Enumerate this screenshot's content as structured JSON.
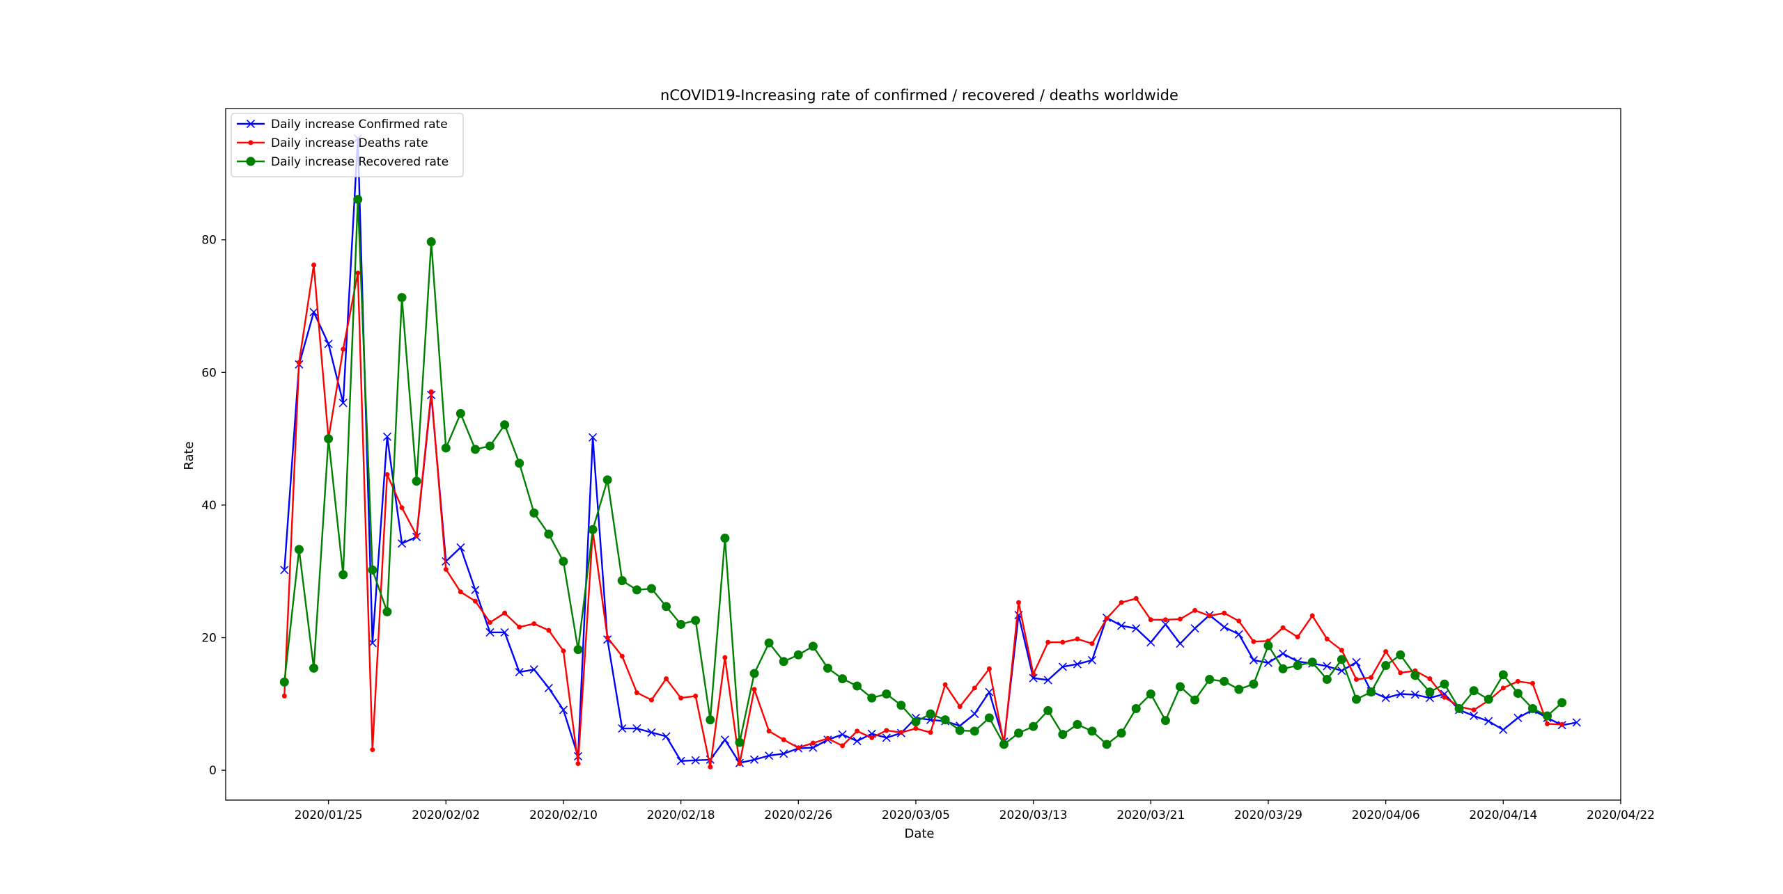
{
  "chart_data": {
    "type": "line",
    "title": "nCOVID19-Increasing rate of confirmed / recovered / deaths worldwide",
    "xlabel": "Date",
    "ylabel": "Rate",
    "x_start": "2020/01/22",
    "xlim": [
      "2020/01/18",
      "2020/04/22"
    ],
    "ylim": [
      -4.5,
      99.8
    ],
    "x_ticks": [
      "2020/01/25",
      "2020/02/02",
      "2020/02/10",
      "2020/02/18",
      "2020/02/26",
      "2020/03/05",
      "2020/03/13",
      "2020/03/21",
      "2020/03/29",
      "2020/04/06",
      "2020/04/14",
      "2020/04/22"
    ],
    "y_ticks": [
      0,
      20,
      40,
      60,
      80
    ],
    "grid": false,
    "legend_position": "upper left",
    "series": [
      {
        "name": "Daily increase Confirmed rate",
        "color": "#0000ff",
        "marker": "x",
        "values": [
          30.2,
          61.2,
          69.1,
          64.3,
          55.4,
          95.3,
          19.2,
          50.3,
          34.2,
          35.2,
          56.6,
          31.5,
          33.6,
          27.2,
          20.8,
          20.8,
          14.8,
          15.2,
          12.4,
          9.1,
          2.1,
          50.2,
          19.7,
          6.3,
          6.3,
          5.7,
          5.1,
          1.4,
          1.5,
          1.6,
          4.6,
          1.1,
          1.6,
          2.2,
          2.5,
          3.3,
          3.4,
          4.6,
          5.4,
          4.4,
          5.5,
          4.9,
          5.6,
          7.9,
          7.6,
          7.4,
          6.7,
          8.5,
          11.8,
          4.3,
          23.4,
          13.9,
          13.6,
          15.6,
          16.0,
          16.6,
          23.0,
          21.8,
          21.4,
          19.3,
          22.0,
          19.1,
          21.4,
          23.4,
          21.6,
          20.5,
          16.6,
          16.2,
          17.6,
          16.4,
          16.1,
          15.7,
          15.0,
          16.3,
          11.9,
          10.9,
          11.5,
          11.4,
          10.9,
          11.5,
          9.1,
          8.2,
          7.4,
          6.1,
          7.9,
          9.1,
          7.9,
          6.8,
          7.2
        ]
      },
      {
        "name": "Daily increase Deaths rate",
        "color": "#ff0000",
        "marker": ".",
        "values": [
          11.2,
          61.5,
          76.2,
          50.0,
          63.5,
          75.0,
          3.1,
          44.6,
          39.6,
          35.4,
          57.1,
          30.3,
          26.9,
          25.5,
          22.3,
          23.7,
          21.6,
          22.1,
          21.1,
          18.0,
          1.0,
          36.1,
          20.0,
          17.2,
          11.7,
          10.6,
          13.8,
          10.9,
          11.2,
          0.5,
          17.0,
          1.0,
          12.2,
          5.9,
          4.6,
          3.4,
          4.1,
          4.8,
          3.7,
          5.9,
          4.9,
          6.0,
          5.7,
          6.3,
          5.7,
          12.9,
          9.6,
          12.4,
          15.3,
          3.9,
          25.3,
          14.5,
          19.3,
          19.3,
          19.8,
          19.1,
          22.9,
          25.3,
          25.9,
          22.7,
          22.7,
          22.8,
          24.1,
          23.3,
          23.7,
          22.5,
          19.4,
          19.5,
          21.5,
          20.1,
          23.3,
          19.8,
          18.1,
          13.7,
          14.0,
          17.9,
          14.7,
          15.0,
          13.8,
          11.0,
          9.6,
          9.1,
          10.5,
          12.4,
          13.4,
          13.1,
          7.0,
          6.9
        ]
      },
      {
        "name": "Daily increase Recovered rate",
        "color": "#008000",
        "marker": "o",
        "values": [
          13.3,
          33.3,
          15.4,
          50.0,
          29.5,
          86.1,
          30.2,
          23.9,
          71.3,
          43.6,
          79.7,
          48.6,
          53.8,
          48.4,
          48.9,
          52.1,
          46.3,
          38.8,
          35.6,
          31.5,
          18.2,
          36.3,
          43.8,
          28.6,
          27.2,
          27.4,
          24.7,
          22.0,
          22.6,
          7.6,
          35.0,
          4.2,
          14.6,
          19.2,
          16.4,
          17.4,
          18.7,
          15.4,
          13.8,
          12.7,
          10.9,
          11.5,
          9.8,
          7.3,
          8.5,
          7.6,
          6.0,
          5.9,
          7.9,
          3.9,
          5.6,
          6.6,
          9.0,
          5.4,
          6.9,
          5.9,
          3.9,
          5.6,
          9.3,
          11.5,
          7.5,
          12.6,
          10.6,
          13.7,
          13.4,
          12.2,
          13.0,
          18.8,
          15.3,
          15.8,
          16.3,
          13.7,
          16.7,
          10.7,
          11.8,
          15.8,
          17.4,
          14.3,
          11.8,
          13.0,
          9.3,
          12.0,
          10.7,
          14.4,
          11.6,
          9.3,
          8.2,
          10.2
        ]
      }
    ]
  }
}
